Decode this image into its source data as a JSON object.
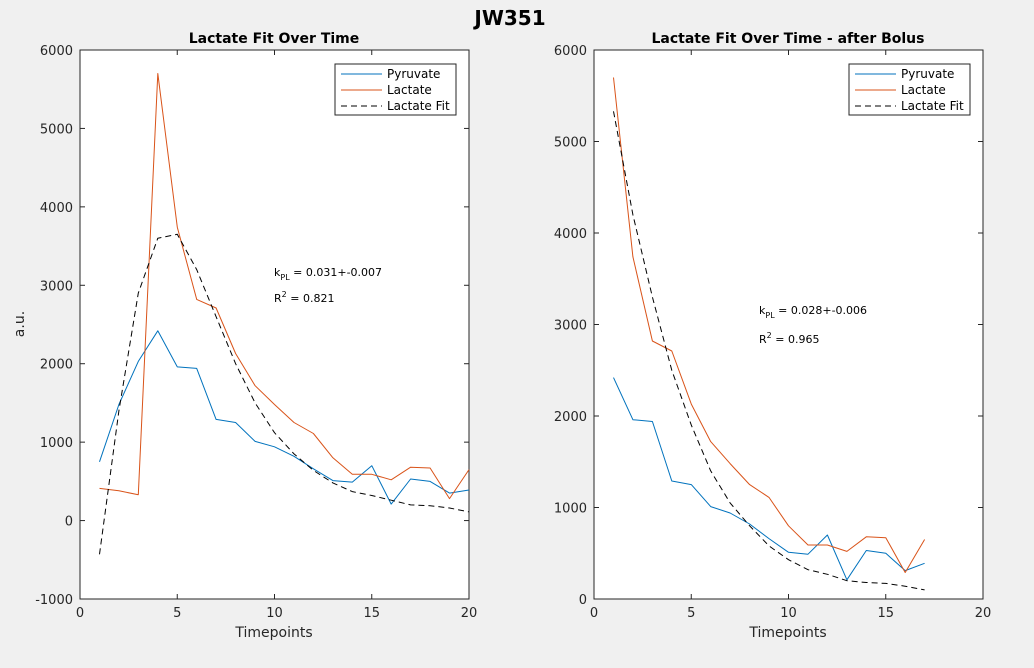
{
  "figure": {
    "title": "JW351",
    "annotations": [
      {
        "k_main": "k",
        "k_sub": "PL",
        "k_text": " = 0.031+-0.007",
        "r_main": "R",
        "r_sup": "2",
        "r_text": " = 0.821"
      },
      {
        "k_main": "k",
        "k_sub": "PL",
        "k_text": " = 0.028+-0.006",
        "r_main": "R",
        "r_sup": "2",
        "r_text": " = 0.965"
      }
    ]
  },
  "colors": {
    "pyruvate": "#0072BD",
    "lactate": "#D95319",
    "fit": "#000000",
    "background": "#f0f0f0",
    "axes_background": "#ffffff"
  },
  "chart_data": [
    {
      "type": "line",
      "title": "Lactate Fit Over Time",
      "xlabel": "Timepoints",
      "ylabel": "a.u.",
      "xlim": [
        0,
        20
      ],
      "ylim": [
        -1000,
        6000
      ],
      "xticks": [
        0,
        5,
        10,
        15,
        20
      ],
      "yticks": [
        -1000,
        0,
        1000,
        2000,
        3000,
        4000,
        5000,
        6000
      ],
      "grid": false,
      "legend_position": "top-right",
      "series": [
        {
          "name": "Pyruvate",
          "style": "solid",
          "x": [
            1,
            2,
            3,
            4,
            5,
            6,
            7,
            8,
            9,
            10,
            11,
            12,
            13,
            14,
            15,
            16,
            17,
            18,
            19,
            20
          ],
          "y": [
            750,
            1480,
            2030,
            2420,
            1960,
            1940,
            1290,
            1250,
            1010,
            940,
            820,
            660,
            510,
            490,
            700,
            210,
            530,
            500,
            350,
            390
          ]
        },
        {
          "name": "Lactate",
          "style": "solid",
          "x": [
            1,
            2,
            3,
            4,
            5,
            6,
            7,
            8,
            9,
            10,
            11,
            12,
            13,
            14,
            15,
            16,
            17,
            18,
            19,
            20
          ],
          "y": [
            410,
            380,
            330,
            5700,
            3740,
            2820,
            2710,
            2130,
            1720,
            1480,
            1250,
            1110,
            800,
            590,
            590,
            520,
            680,
            670,
            280,
            650
          ]
        },
        {
          "name": "Lactate Fit",
          "style": "dashed",
          "x": [
            1,
            2,
            3,
            4,
            5,
            6,
            7,
            8,
            9,
            10,
            11,
            12,
            13,
            14,
            15,
            16,
            17,
            18,
            19,
            20
          ],
          "y": [
            -430,
            1400,
            2900,
            3600,
            3650,
            3200,
            2600,
            2000,
            1500,
            1120,
            850,
            640,
            480,
            370,
            320,
            260,
            200,
            190,
            160,
            110
          ]
        }
      ]
    },
    {
      "type": "line",
      "title": "Lactate Fit Over Time - after Bolus",
      "xlabel": "Timepoints",
      "ylabel": "",
      "xlim": [
        0,
        20
      ],
      "ylim": [
        0,
        6000
      ],
      "xticks": [
        0,
        5,
        10,
        15,
        20
      ],
      "yticks": [
        0,
        1000,
        2000,
        3000,
        4000,
        5000,
        6000
      ],
      "grid": false,
      "legend_position": "top-right",
      "series": [
        {
          "name": "Pyruvate",
          "style": "solid",
          "x": [
            1,
            2,
            3,
            4,
            5,
            6,
            7,
            8,
            9,
            10,
            11,
            12,
            13,
            14,
            15,
            16,
            17
          ],
          "y": [
            2420,
            1960,
            1940,
            1290,
            1250,
            1010,
            940,
            820,
            660,
            510,
            490,
            700,
            210,
            530,
            500,
            310,
            390
          ]
        },
        {
          "name": "Lactate",
          "style": "solid",
          "x": [
            1,
            2,
            3,
            4,
            5,
            6,
            7,
            8,
            9,
            10,
            11,
            12,
            13,
            14,
            15,
            16,
            17
          ],
          "y": [
            5700,
            3740,
            2820,
            2710,
            2130,
            1720,
            1480,
            1250,
            1110,
            800,
            590,
            590,
            520,
            680,
            670,
            290,
            650
          ]
        },
        {
          "name": "Lactate Fit",
          "style": "dashed",
          "x": [
            1,
            2,
            3,
            4,
            5,
            6,
            7,
            8,
            9,
            10,
            11,
            12,
            13,
            14,
            15,
            16,
            17
          ],
          "y": [
            5330,
            4200,
            3300,
            2500,
            1900,
            1400,
            1050,
            800,
            580,
            430,
            320,
            270,
            200,
            180,
            170,
            140,
            100
          ]
        }
      ]
    }
  ]
}
